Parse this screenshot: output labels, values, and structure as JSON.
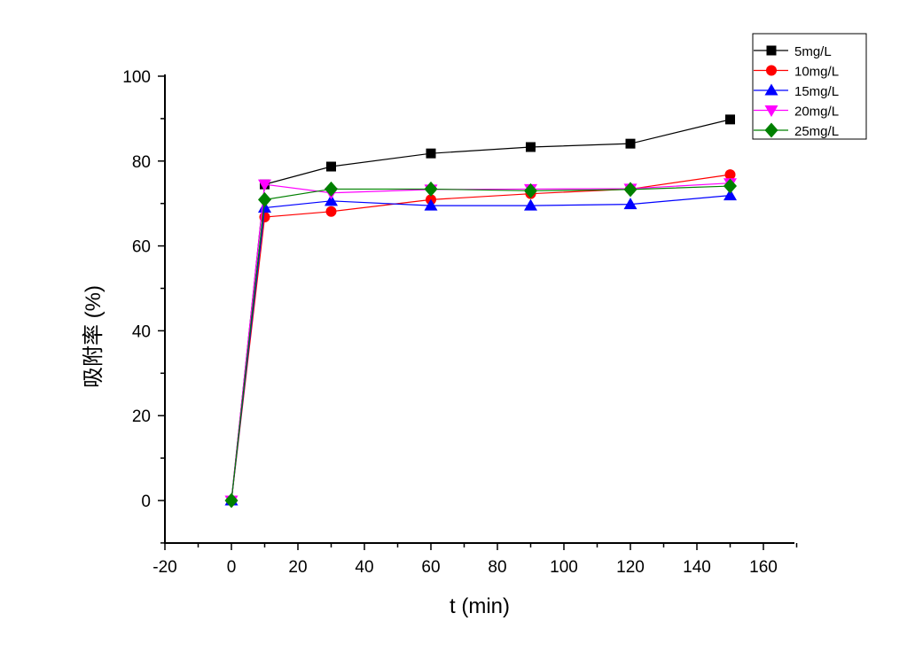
{
  "chart_data": {
    "type": "line",
    "title": "",
    "xlabel": "t (min)",
    "ylabel": "吸附率 (%)",
    "xlim": [
      -20,
      170
    ],
    "ylim": [
      -10,
      100
    ],
    "xticks": [
      -20,
      0,
      20,
      40,
      60,
      80,
      100,
      120,
      140,
      160
    ],
    "yticks": [
      0,
      20,
      40,
      60,
      80,
      100
    ],
    "grid": false,
    "legend_position": "top-right",
    "x": [
      0,
      10,
      30,
      60,
      90,
      120,
      150
    ],
    "series": [
      {
        "name": "5mg/L",
        "color": "#000000",
        "marker": "square",
        "values": [
          0,
          74.5,
          78.7,
          81.8,
          83.3,
          84.1,
          89.8
        ]
      },
      {
        "name": "10mg/L",
        "color": "#ff0000",
        "marker": "circle",
        "values": [
          0,
          66.8,
          68.1,
          70.9,
          72.3,
          73.4,
          76.8
        ]
      },
      {
        "name": "15mg/L",
        "color": "#0000ff",
        "marker": "triangle-up",
        "values": [
          0,
          69.0,
          70.6,
          69.5,
          69.5,
          69.8,
          71.9
        ]
      },
      {
        "name": "20mg/L",
        "color": "#ff00ff",
        "marker": "triangle-down",
        "values": [
          0,
          74.5,
          72.5,
          73.3,
          73.4,
          73.5,
          74.8
        ]
      },
      {
        "name": "25mg/L",
        "color": "#008000",
        "marker": "diamond",
        "values": [
          0,
          70.9,
          73.4,
          73.4,
          73.0,
          73.3,
          74.1
        ]
      }
    ]
  }
}
